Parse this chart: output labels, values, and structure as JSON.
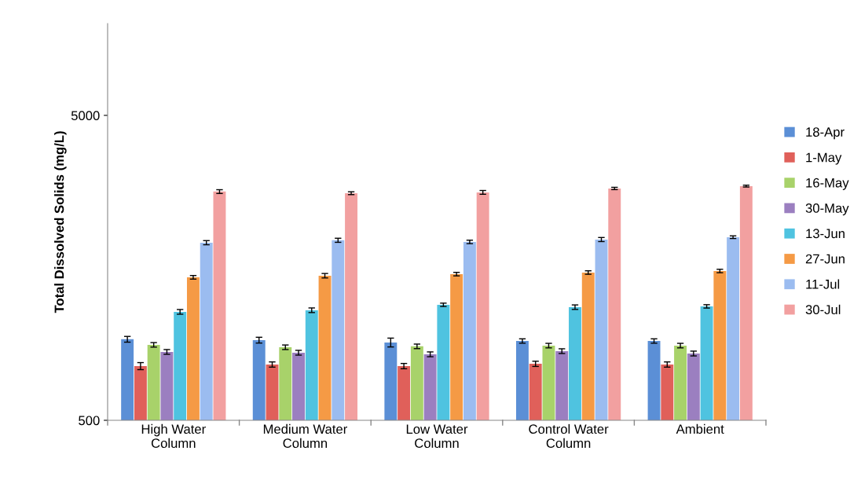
{
  "chart_data": {
    "type": "bar",
    "ylabel": "Total Dissolved Solids (mg/L)",
    "categories": [
      "High Water\nColumn",
      "Medium Water\nColumn",
      "Low Water\nColumn",
      "Control Water\nColumn",
      "Ambient"
    ],
    "log": "y",
    "ylim": [
      500,
      10000
    ],
    "yticks": [
      500,
      5000
    ],
    "grid": false,
    "legend": "right",
    "series": [
      {
        "name": "18-Apr",
        "color": "#5b8fd6",
        "values": [
          922,
          916,
          900,
          910,
          910
        ],
        "errors": [
          20,
          20,
          30,
          15,
          15
        ]
      },
      {
        "name": "1-May",
        "color": "#e0605a",
        "values": [
          753,
          762,
          753,
          766,
          762
        ],
        "errors": [
          20,
          15,
          15,
          15,
          15
        ]
      },
      {
        "name": "16-May",
        "color": "#a8d26a",
        "values": [
          884,
          868,
          874,
          879,
          879
        ],
        "errors": [
          15,
          15,
          15,
          15,
          15
        ]
      },
      {
        "name": "30-May",
        "color": "#9b7fc0",
        "values": [
          838,
          833,
          823,
          843,
          828
        ],
        "errors": [
          15,
          15,
          15,
          15,
          15
        ]
      },
      {
        "name": "13-Jun",
        "color": "#4fc3e0",
        "values": [
          1134,
          1148,
          1196,
          1175,
          1182
        ],
        "errors": [
          20,
          20,
          15,
          20,
          15
        ]
      },
      {
        "name": "27-Jun",
        "color": "#f59a45",
        "values": [
          1472,
          1490,
          1508,
          1526,
          1544
        ],
        "errors": [
          20,
          25,
          20,
          20,
          20
        ]
      },
      {
        "name": "11-Jul",
        "color": "#9bbcf0",
        "values": [
          1912,
          1947,
          1923,
          1958,
          1993
        ],
        "errors": [
          30,
          30,
          25,
          30,
          20
        ]
      },
      {
        "name": "30-Jul",
        "color": "#f2a0a0",
        "values": [
          2812,
          2778,
          2795,
          2879,
          2931
        ],
        "errors": [
          40,
          30,
          40,
          25,
          20
        ]
      }
    ]
  }
}
